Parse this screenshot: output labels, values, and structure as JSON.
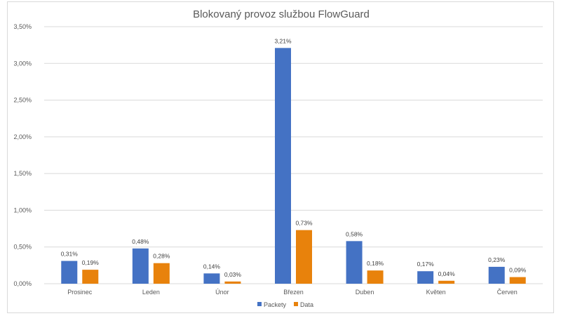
{
  "chart_data": {
    "type": "bar",
    "title": "Blokovaný provoz službou FlowGuard",
    "xlabel": "",
    "ylabel": "",
    "categories": [
      "Prosinec",
      "Leden",
      "Únor",
      "Březen",
      "Duben",
      "Květen",
      "Červen"
    ],
    "series": [
      {
        "name": "Packety",
        "color": "#4472c4",
        "values": [
          0.31,
          0.48,
          0.14,
          3.21,
          0.58,
          0.17,
          0.23
        ],
        "labels": [
          "0,31%",
          "0,48%",
          "0,14%",
          "3,21%",
          "0,58%",
          "0,17%",
          "0,23%"
        ]
      },
      {
        "name": "Data",
        "color": "#e8820c",
        "values": [
          0.19,
          0.28,
          0.03,
          0.73,
          0.18,
          0.04,
          0.09
        ],
        "labels": [
          "0,19%",
          "0,28%",
          "0,03%",
          "0,73%",
          "0,18%",
          "0,04%",
          "0,09%"
        ]
      }
    ],
    "ylim": [
      0,
      3.5
    ],
    "yticks": [
      0,
      0.5,
      1.0,
      1.5,
      2.0,
      2.5,
      3.0,
      3.5
    ],
    "ytick_labels": [
      "0,00%",
      "0,50%",
      "1,00%",
      "1,50%",
      "2,00%",
      "2,50%",
      "3,00%",
      "3,50%"
    ],
    "grid": true,
    "legend_position": "bottom",
    "gridline_color": "#d9d9d9"
  }
}
